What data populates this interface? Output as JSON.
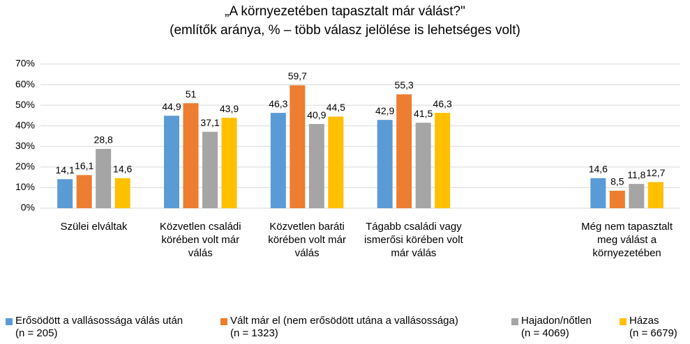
{
  "chart_data": {
    "type": "bar",
    "title": "„A környezetében tapasztalt már válást?\"",
    "subtitle": "(említők aránya, % – több válasz jelölése is lehetséges volt)",
    "categories": [
      "Szülei elváltak",
      "Közvetlen családi körében volt már válás",
      "Közvetlen baráti körében volt már válás",
      "Tágabb családi vagy ismerősi körében volt már válás",
      null,
      "Még nem tapasztalt meg válást a környezetében"
    ],
    "series": [
      {
        "name": "Erősödött a vallásossága válás után\n(n = 205)",
        "color": "#5b9bd5",
        "values": [
          14.1,
          44.9,
          46.3,
          42.9,
          null,
          14.6
        ],
        "value_labels": [
          "14,1",
          "44,9",
          "46,3",
          "42,9",
          null,
          "14,6"
        ]
      },
      {
        "name": "Vált már el (nem erősödött utána a vallásossága)\n(n = 1323)",
        "color": "#ed7d31",
        "values": [
          16.1,
          51,
          59.7,
          55.3,
          null,
          8.5
        ],
        "value_labels": [
          "16,1",
          "51",
          "59,7",
          "55,3",
          null,
          "8,5"
        ]
      },
      {
        "name": "Hajadon/nőtlen\n(n = 4069)",
        "color": "#a5a5a5",
        "values": [
          28.8,
          37.1,
          40.9,
          41.5,
          null,
          11.8
        ],
        "value_labels": [
          "28,8",
          "37,1",
          "40,9",
          "41,5",
          null,
          "11,8"
        ]
      },
      {
        "name": "Házas\n(n = 6679)",
        "color": "#ffc000",
        "values": [
          14.6,
          43.9,
          44.5,
          46.3,
          null,
          12.7
        ],
        "value_labels": [
          "14,6",
          "43,9",
          "44,5",
          "46,3",
          null,
          "12,7"
        ]
      }
    ],
    "ylim": [
      0,
      70
    ],
    "yticks": [
      {
        "value": 0,
        "label": "0%"
      },
      {
        "value": 10,
        "label": "10%"
      },
      {
        "value": 20,
        "label": "20%"
      },
      {
        "value": 30,
        "label": "30%"
      },
      {
        "value": 40,
        "label": "40%"
      },
      {
        "value": 50,
        "label": "50%"
      },
      {
        "value": 60,
        "label": "60%"
      },
      {
        "value": 70,
        "label": "70%"
      }
    ],
    "grid": true
  }
}
